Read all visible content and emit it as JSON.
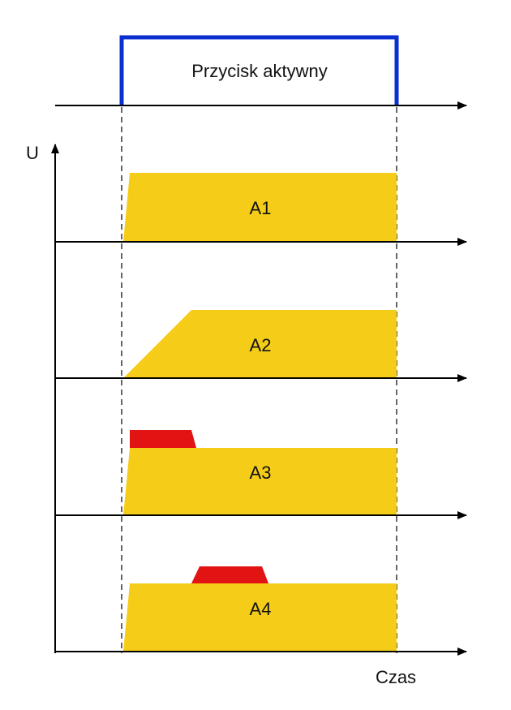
{
  "button": {
    "label": "Przycisk aktywny"
  },
  "axes": {
    "y_label": "U",
    "x_label": "Czas"
  },
  "modes": [
    {
      "label": "A1"
    },
    {
      "label": "A2"
    },
    {
      "label": "A3"
    },
    {
      "label": "A4"
    }
  ]
}
